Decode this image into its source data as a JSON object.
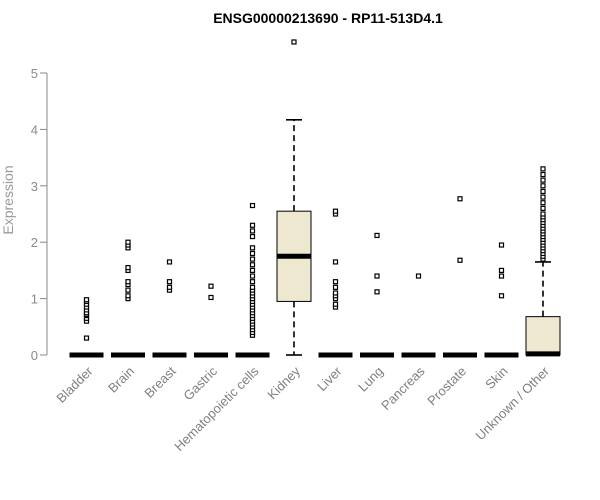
{
  "chart_data": {
    "type": "box",
    "title": "ENSG00000213690 - RP11-513D4.1",
    "ylabel": "Expression",
    "ylim": [
      0,
      5.5
    ],
    "yticks": [
      0,
      1,
      2,
      3,
      4,
      5
    ],
    "colors": {
      "box_fill": "#eee8d0",
      "axis": "#8a8a8a",
      "line": "#000000"
    },
    "categories": [
      "Bladder",
      "Brain",
      "Breast",
      "Gastric",
      "Hematopoietic cells",
      "Kidney",
      "Liver",
      "Lung",
      "Pancreas",
      "Prostate",
      "Skin",
      "Unknown / Other"
    ],
    "boxes": [
      {
        "q1": 0,
        "median": 0,
        "q3": 0,
        "whisker_low": 0,
        "whisker_high": 0,
        "outliers": [
          0.3,
          0.6,
          0.65,
          0.7,
          0.72,
          0.75,
          0.8,
          0.85,
          0.9,
          0.95,
          0.98
        ]
      },
      {
        "q1": 0,
        "median": 0,
        "q3": 0,
        "whisker_low": 0,
        "whisker_high": 0,
        "outliers": [
          1.0,
          1.05,
          1.15,
          1.25,
          1.3,
          1.5,
          1.55,
          1.9,
          1.95,
          2.0
        ]
      },
      {
        "q1": 0,
        "median": 0,
        "q3": 0,
        "whisker_low": 0,
        "whisker_high": 0,
        "outliers": [
          1.15,
          1.2,
          1.3,
          1.65
        ]
      },
      {
        "q1": 0,
        "median": 0,
        "q3": 0,
        "whisker_low": 0,
        "whisker_high": 0,
        "outliers": [
          1.02,
          1.22
        ]
      },
      {
        "q1": 0,
        "median": 0,
        "q3": 0,
        "whisker_low": 0,
        "whisker_high": 0,
        "outliers": [
          0.35,
          0.4,
          0.45,
          0.5,
          0.55,
          0.6,
          0.65,
          0.7,
          0.75,
          0.8,
          0.85,
          0.9,
          0.95,
          1.0,
          1.05,
          1.1,
          1.15,
          1.2,
          1.3,
          1.4,
          1.5,
          1.6,
          1.7,
          1.8,
          1.9,
          2.1,
          2.2,
          2.3,
          2.65
        ]
      },
      {
        "q1": 0.95,
        "median": 1.75,
        "q3": 2.55,
        "whisker_low": 0,
        "whisker_high": 4.17,
        "outliers": [
          5.55
        ]
      },
      {
        "q1": 0,
        "median": 0,
        "q3": 0,
        "whisker_low": 0,
        "whisker_high": 0,
        "outliers": [
          0.85,
          0.9,
          1.0,
          1.05,
          1.1,
          1.2,
          1.3,
          1.65,
          2.5,
          2.55
        ]
      },
      {
        "q1": 0,
        "median": 0,
        "q3": 0,
        "whisker_low": 0,
        "whisker_high": 0,
        "outliers": [
          1.12,
          1.4,
          2.12
        ]
      },
      {
        "q1": 0,
        "median": 0,
        "q3": 0,
        "whisker_low": 0,
        "whisker_high": 0,
        "outliers": [
          1.4
        ]
      },
      {
        "q1": 0,
        "median": 0,
        "q3": 0,
        "whisker_low": 0,
        "whisker_high": 0,
        "outliers": [
          1.68,
          2.77
        ]
      },
      {
        "q1": 0,
        "median": 0,
        "q3": 0,
        "whisker_low": 0,
        "whisker_high": 0,
        "outliers": [
          1.05,
          1.4,
          1.5,
          1.95
        ]
      },
      {
        "q1": 0,
        "median": 0.02,
        "q3": 0.68,
        "whisker_low": 0,
        "whisker_high": 1.65,
        "outliers": [
          1.7,
          1.75,
          1.8,
          1.85,
          1.9,
          1.95,
          2.0,
          2.05,
          2.1,
          2.15,
          2.2,
          2.25,
          2.3,
          2.35,
          2.4,
          2.45,
          2.5,
          2.6,
          2.7,
          2.8,
          2.9,
          3.0,
          3.1,
          3.2,
          3.3
        ]
      }
    ]
  }
}
